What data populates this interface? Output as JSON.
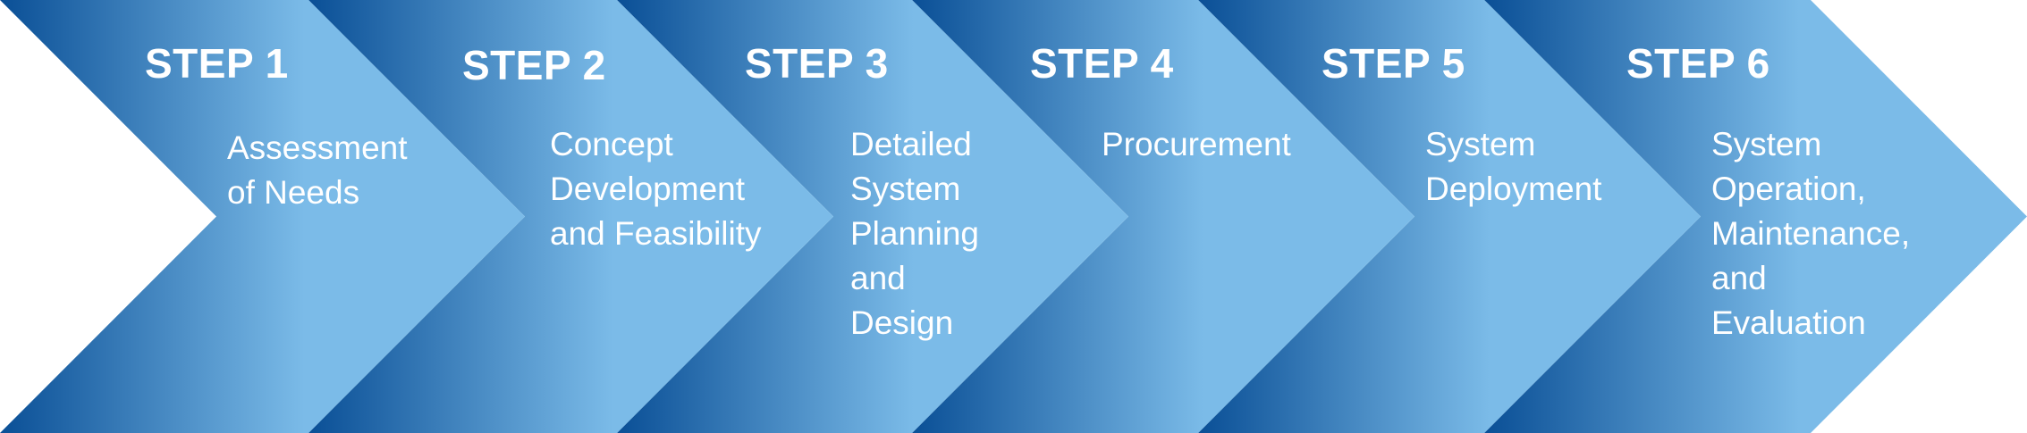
{
  "colors": {
    "dark_blue": "#0a4f96",
    "light_blue": "#7bbbe8",
    "text": "#ffffff"
  },
  "steps": [
    {
      "title": "STEP 1",
      "description": [
        "Assessment",
        "of Needs"
      ]
    },
    {
      "title": "STEP 2",
      "description": [
        "Concept",
        "Development",
        "and Feasibility"
      ]
    },
    {
      "title": "STEP 3",
      "description": [
        "Detailed",
        "System",
        "Planning",
        "and",
        "Design"
      ]
    },
    {
      "title": "STEP 4",
      "description": [
        "Procurement"
      ]
    },
    {
      "title": "STEP 5",
      "description": [
        "System",
        "Deployment"
      ]
    },
    {
      "title": "STEP 6",
      "description": [
        "System",
        "Operation,",
        "Maintenance,",
        "and",
        "Evaluation"
      ]
    }
  ]
}
